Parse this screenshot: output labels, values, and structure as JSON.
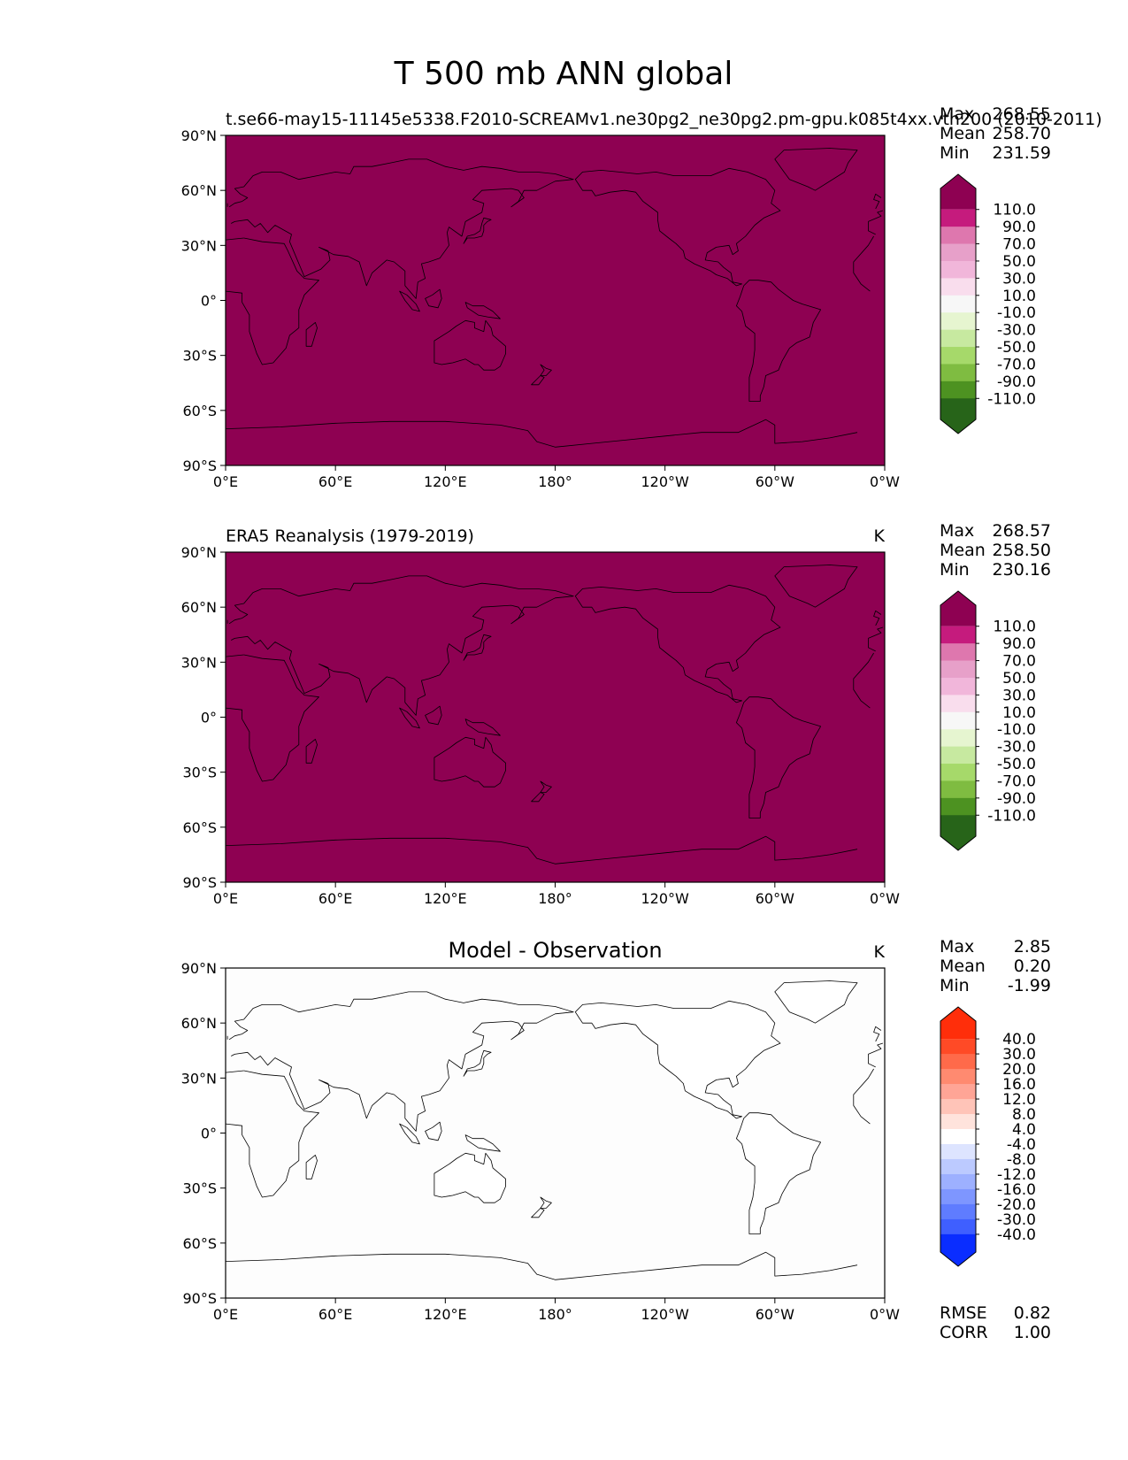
{
  "title": "T 500 mb ANN global",
  "lat_ticks": [
    "90°N",
    "60°N",
    "30°N",
    "0°",
    "30°S",
    "60°S",
    "90°S"
  ],
  "lon_ticks": [
    "0°E",
    "60°E",
    "120°E",
    "180°",
    "120°W",
    "60°W",
    "0°W"
  ],
  "panels": [
    {
      "id": "test",
      "left_title": "t.se66-may15-11145e5338.F2010-SCREAMv1.ne30pg2_ne30pg2.pm-gpu.k085t4xx.vth200 (2010-2011)",
      "center_title": "",
      "units": "K",
      "map_fill": "#8e0152",
      "land_fill": "none",
      "stats": [
        {
          "label": "Max",
          "value": "268.55"
        },
        {
          "label": "Mean",
          "value": "258.70"
        },
        {
          "label": "Min",
          "value": "231.59"
        }
      ],
      "colorbar": {
        "top_color": "#8e0152",
        "bottom_color": "#276419",
        "colors": [
          "#c51b7d",
          "#de77ae",
          "#e7a0c9",
          "#f1b6da",
          "#f9dded",
          "#f7f7f7",
          "#e6f5d0",
          "#c7e9a0",
          "#a6d96a",
          "#7fbc41",
          "#4d9221"
        ],
        "labels": [
          "110.0",
          "90.0",
          "70.0",
          "50.0",
          "30.0",
          "10.0",
          "-10.0",
          "-30.0",
          "-50.0",
          "-70.0",
          "-90.0",
          "-110.0"
        ]
      },
      "extra_stats": []
    },
    {
      "id": "reference",
      "left_title": "ERA5 Reanalysis (1979-2019)",
      "center_title": "",
      "units": "K",
      "map_fill": "#8e0152",
      "land_fill": "none",
      "stats": [
        {
          "label": "Max",
          "value": "268.57"
        },
        {
          "label": "Mean",
          "value": "258.50"
        },
        {
          "label": "Min",
          "value": "230.16"
        }
      ],
      "colorbar": {
        "top_color": "#8e0152",
        "bottom_color": "#276419",
        "colors": [
          "#c51b7d",
          "#de77ae",
          "#e7a0c9",
          "#f1b6da",
          "#f9dded",
          "#f7f7f7",
          "#e6f5d0",
          "#c7e9a0",
          "#a6d96a",
          "#7fbc41",
          "#4d9221"
        ],
        "labels": [
          "110.0",
          "90.0",
          "70.0",
          "50.0",
          "30.0",
          "10.0",
          "-10.0",
          "-30.0",
          "-50.0",
          "-70.0",
          "-90.0",
          "-110.0"
        ]
      },
      "extra_stats": []
    },
    {
      "id": "difference",
      "left_title": "",
      "center_title": "Model - Observation",
      "units": "K",
      "map_fill": "#fdfdfd",
      "land_fill": "#ffffff",
      "stats": [
        {
          "label": "Max",
          "value": "2.85"
        },
        {
          "label": "Mean",
          "value": "0.20"
        },
        {
          "label": "Min",
          "value": "-1.99"
        }
      ],
      "colorbar": {
        "top_color": "#ff2e0a",
        "bottom_color": "#0a2dff",
        "colors": [
          "#ff4a26",
          "#ff6a4a",
          "#ff8a70",
          "#ffa596",
          "#ffc4b8",
          "#ffe3dc",
          "#ffffff",
          "#dde4ff",
          "#bccaff",
          "#9db0ff",
          "#7e96ff",
          "#5f7cff",
          "#3f5fff"
        ],
        "labels": [
          "40.0",
          "30.0",
          "20.0",
          "16.0",
          "12.0",
          "8.0",
          "4.0",
          "-4.0",
          "-8.0",
          "-12.0",
          "-16.0",
          "-20.0",
          "-30.0",
          "-40.0"
        ]
      },
      "extra_stats": [
        {
          "label": "RMSE",
          "value": "0.82"
        },
        {
          "label": "CORR",
          "value": "1.00"
        }
      ]
    }
  ]
}
